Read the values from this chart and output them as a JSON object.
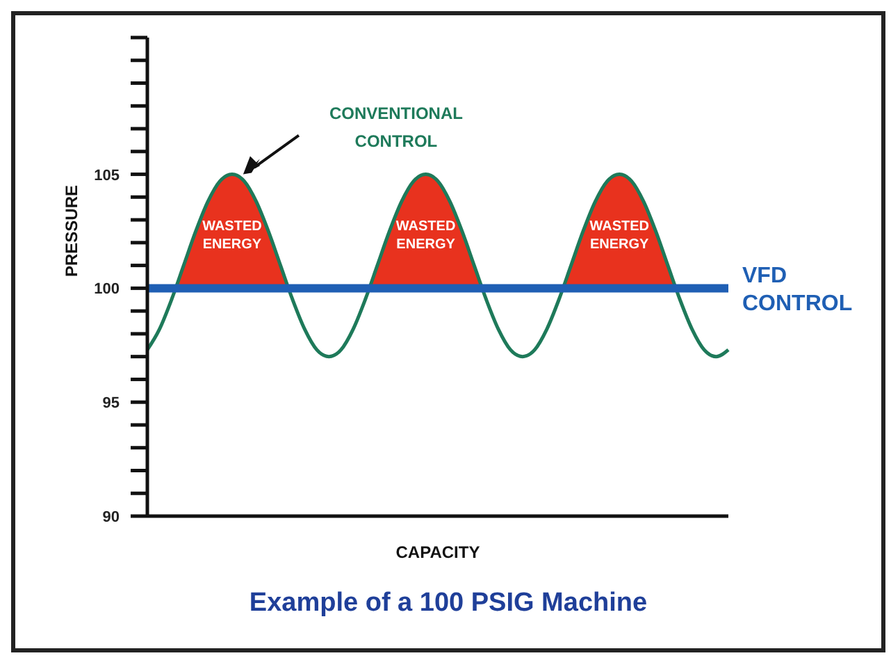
{
  "chart_data": {
    "type": "line",
    "title": "Example of a 100 PSIG Machine",
    "xlabel": "CAPACITY",
    "ylabel": "PRESSURE",
    "categories": [
      null,
      null,
      null,
      null,
      null,
      null,
      null,
      null,
      null,
      null,
      null,
      null,
      null,
      null,
      null,
      null,
      null,
      null,
      null,
      null,
      null,
      null,
      null,
      null,
      null,
      null,
      null,
      null,
      null,
      null,
      null,
      null,
      null,
      null,
      null,
      null,
      null,
      null,
      null,
      null,
      null,
      null,
      null,
      null,
      null,
      null,
      null,
      null,
      null
    ],
    "series": [
      {
        "type": "area",
        "color": "#e8321e",
        "values": [
          100,
          100,
          100,
          101,
          102.5,
          103.8,
          104.7,
          105,
          104.7,
          103.8,
          102.5,
          101,
          100,
          100,
          100,
          100,
          100,
          100,
          100,
          101,
          102.5,
          103.8,
          104.7,
          105,
          104.7,
          103.8,
          102.5,
          101,
          100,
          100,
          100,
          100,
          100,
          100,
          100,
          101,
          102.5,
          103.8,
          104.7,
          105,
          104.7,
          103.8,
          102.5,
          101,
          100,
          100,
          100,
          100,
          100
        ]
      },
      {
        "type": "line",
        "name": "CONVENTIONAL CONTROL",
        "color": "#1e7a5a",
        "values": [
          97.3,
          98.2,
          99.5,
          101,
          102.5,
          103.8,
          104.7,
          105,
          104.7,
          103.8,
          102.5,
          101,
          99.5,
          98.2,
          97.3,
          97,
          97.3,
          98.2,
          99.5,
          101,
          102.5,
          103.8,
          104.7,
          105,
          104.7,
          103.8,
          102.5,
          101,
          99.5,
          98.2,
          97.3,
          97,
          97.3,
          98.2,
          99.5,
          101,
          102.5,
          103.8,
          104.7,
          105,
          104.7,
          103.8,
          102.5,
          101,
          99.5,
          98.2,
          97.3,
          97,
          97.3
        ]
      }
    ],
    "ylim": [
      90,
      111
    ],
    "yticks": [
      90,
      {
        "value": 91,
        "label": null
      },
      {
        "value": 92,
        "label": null
      },
      {
        "value": 93,
        "label": null
      },
      {
        "value": 94,
        "label": null
      },
      95,
      {
        "value": 96,
        "label": null
      },
      {
        "value": 97,
        "label": null
      },
      {
        "value": 98,
        "label": null
      },
      {
        "value": 99,
        "label": null
      },
      100,
      {
        "value": 101,
        "label": null
      },
      {
        "value": 102,
        "label": null
      },
      {
        "value": 103,
        "label": null
      },
      {
        "value": 104,
        "label": null
      },
      105,
      {
        "value": 106,
        "label": null
      },
      {
        "value": 107,
        "label": null
      },
      {
        "value": 108,
        "label": null
      },
      {
        "value": 109,
        "label": null
      },
      {
        "value": 110,
        "label": null
      },
      {
        "value": 111,
        "label": null
      }
    ],
    "ref_lines": [
      {
        "axis": "y",
        "value": 100,
        "label": "VFD CONTROL",
        "color": "#1f5fb4"
      }
    ],
    "annotations": [
      "WASTED ENERGY",
      "WASTED ENERGY",
      "WASTED ENERGY"
    ],
    "tick_labels": "y",
    "marker": "none",
    "line_style": "solid"
  }
}
